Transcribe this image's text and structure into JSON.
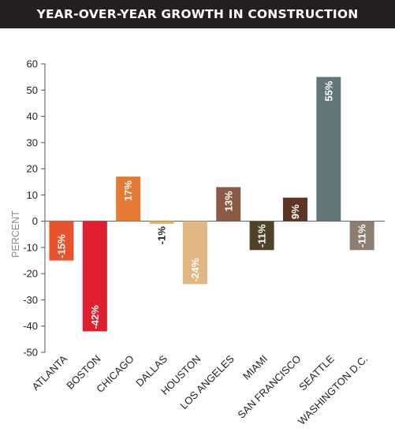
{
  "chart_data": {
    "type": "bar",
    "title": "YEAR-OVER-YEAR GROWTH IN CONSTRUCTION",
    "ylabel": "PERCENT",
    "xlabel": "",
    "ylim": [
      -50,
      60
    ],
    "yticks": [
      60,
      50,
      40,
      30,
      20,
      10,
      0,
      -10,
      -20,
      -30,
      -40,
      -50
    ],
    "categories": [
      "ATLANTA",
      "BOSTON",
      "CHICAGO",
      "DALLAS",
      "HOUSTON",
      "LOS ANGELES",
      "MIAMI",
      "SAN FRANCISCO",
      "SEATTLE",
      "WASHINGTON D.C."
    ],
    "values": [
      -15,
      -42,
      17,
      -1,
      -24,
      13,
      -11,
      9,
      55,
      -11
    ],
    "data_labels": [
      "-15%",
      "-42%",
      "17%",
      "-1%",
      "-24%",
      "13%",
      "-11%",
      "9%",
      "55%",
      "-11%"
    ],
    "colors": [
      "#e8532c",
      "#e01e2d",
      "#e47a31",
      "#e9b65a",
      "#e2b784",
      "#8b5a45",
      "#4e4328",
      "#5c3524",
      "#63777b",
      "#8c7f72"
    ],
    "label_colors": [
      "#ffffff",
      "#ffffff",
      "#ffffff",
      "#231f20",
      "#ffffff",
      "#ffffff",
      "#ffffff",
      "#ffffff",
      "#ffffff",
      "#ffffff"
    ],
    "grid": false
  }
}
